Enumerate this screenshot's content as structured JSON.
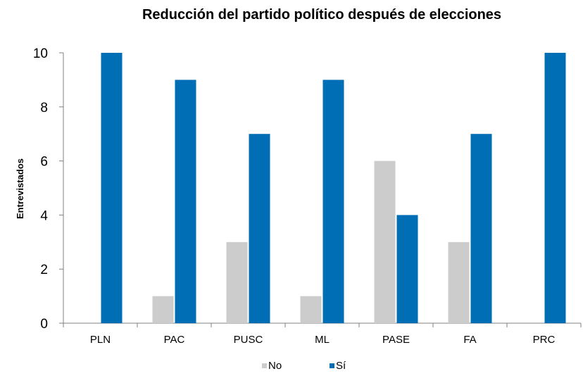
{
  "chart_data": {
    "type": "bar",
    "title": "Reducción del partido político después de elecciones",
    "ylabel": "Entrevistados",
    "xlabel": "",
    "categories": [
      "PLN",
      "PAC",
      "PUSC",
      "ML",
      "PASE",
      "FA",
      "PRC"
    ],
    "series": [
      {
        "name": "No",
        "color": "#cccccc",
        "values": [
          0,
          1,
          3,
          1,
          6,
          3,
          0
        ]
      },
      {
        "name": "Sí",
        "color": "#006eb5",
        "values": [
          10,
          9,
          7,
          9,
          4,
          7,
          10
        ]
      }
    ],
    "ylim": [
      0,
      10
    ],
    "yticks": [
      0,
      2,
      4,
      6,
      8,
      10
    ],
    "grid": false,
    "legend_position": "bottom"
  }
}
